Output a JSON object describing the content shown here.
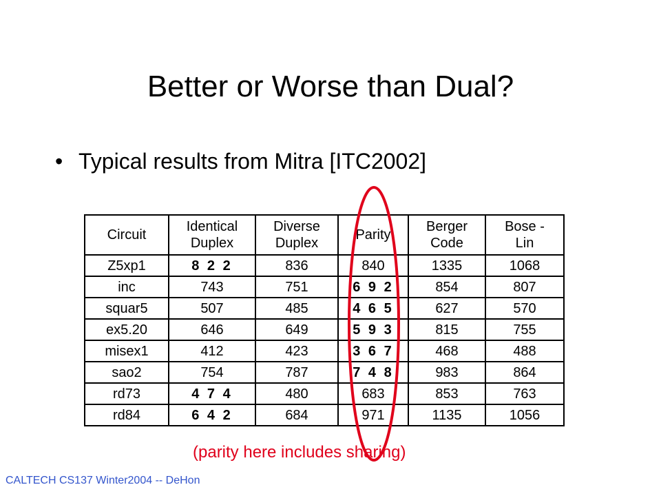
{
  "title": "Better or Worse than Dual?",
  "bullet": "Typical results from Mitra [ITC2002]",
  "table": {
    "headers": [
      [
        "Circuit"
      ],
      [
        "Identical",
        "Duplex"
      ],
      [
        "Diverse",
        "Duplex"
      ],
      [
        "Parity"
      ],
      [
        "Berger",
        "Code"
      ],
      [
        "Bose -",
        "Lin"
      ]
    ],
    "rows": [
      [
        "Z5xp1",
        "8 2 2",
        "836",
        "840",
        "1335",
        "1068"
      ],
      [
        "inc",
        "743",
        "751",
        "6 9 2",
        "854",
        "807"
      ],
      [
        "squar5",
        "507",
        "485",
        "4 6 5",
        "627",
        "570"
      ],
      [
        "ex5.20",
        "646",
        "649",
        "5 9 3",
        "815",
        "755"
      ],
      [
        "misex1",
        "412",
        "423",
        "3 6 7",
        "468",
        "488"
      ],
      [
        "sao2",
        "754",
        "787",
        "7 4 8",
        "983",
        "864"
      ],
      [
        "rd73",
        "4 7 4",
        "480",
        "683",
        "853",
        "763"
      ],
      [
        "rd84",
        "6 4 2",
        "684",
        "971",
        "1135",
        "1056"
      ]
    ]
  },
  "note": "(parity here includes sharing)",
  "footer": "CALTECH CS137 Winter2004 -- DeHon",
  "colors": {
    "note": "#e0001b",
    "ellipse": "#e0001b",
    "footer": "#3355cc"
  }
}
